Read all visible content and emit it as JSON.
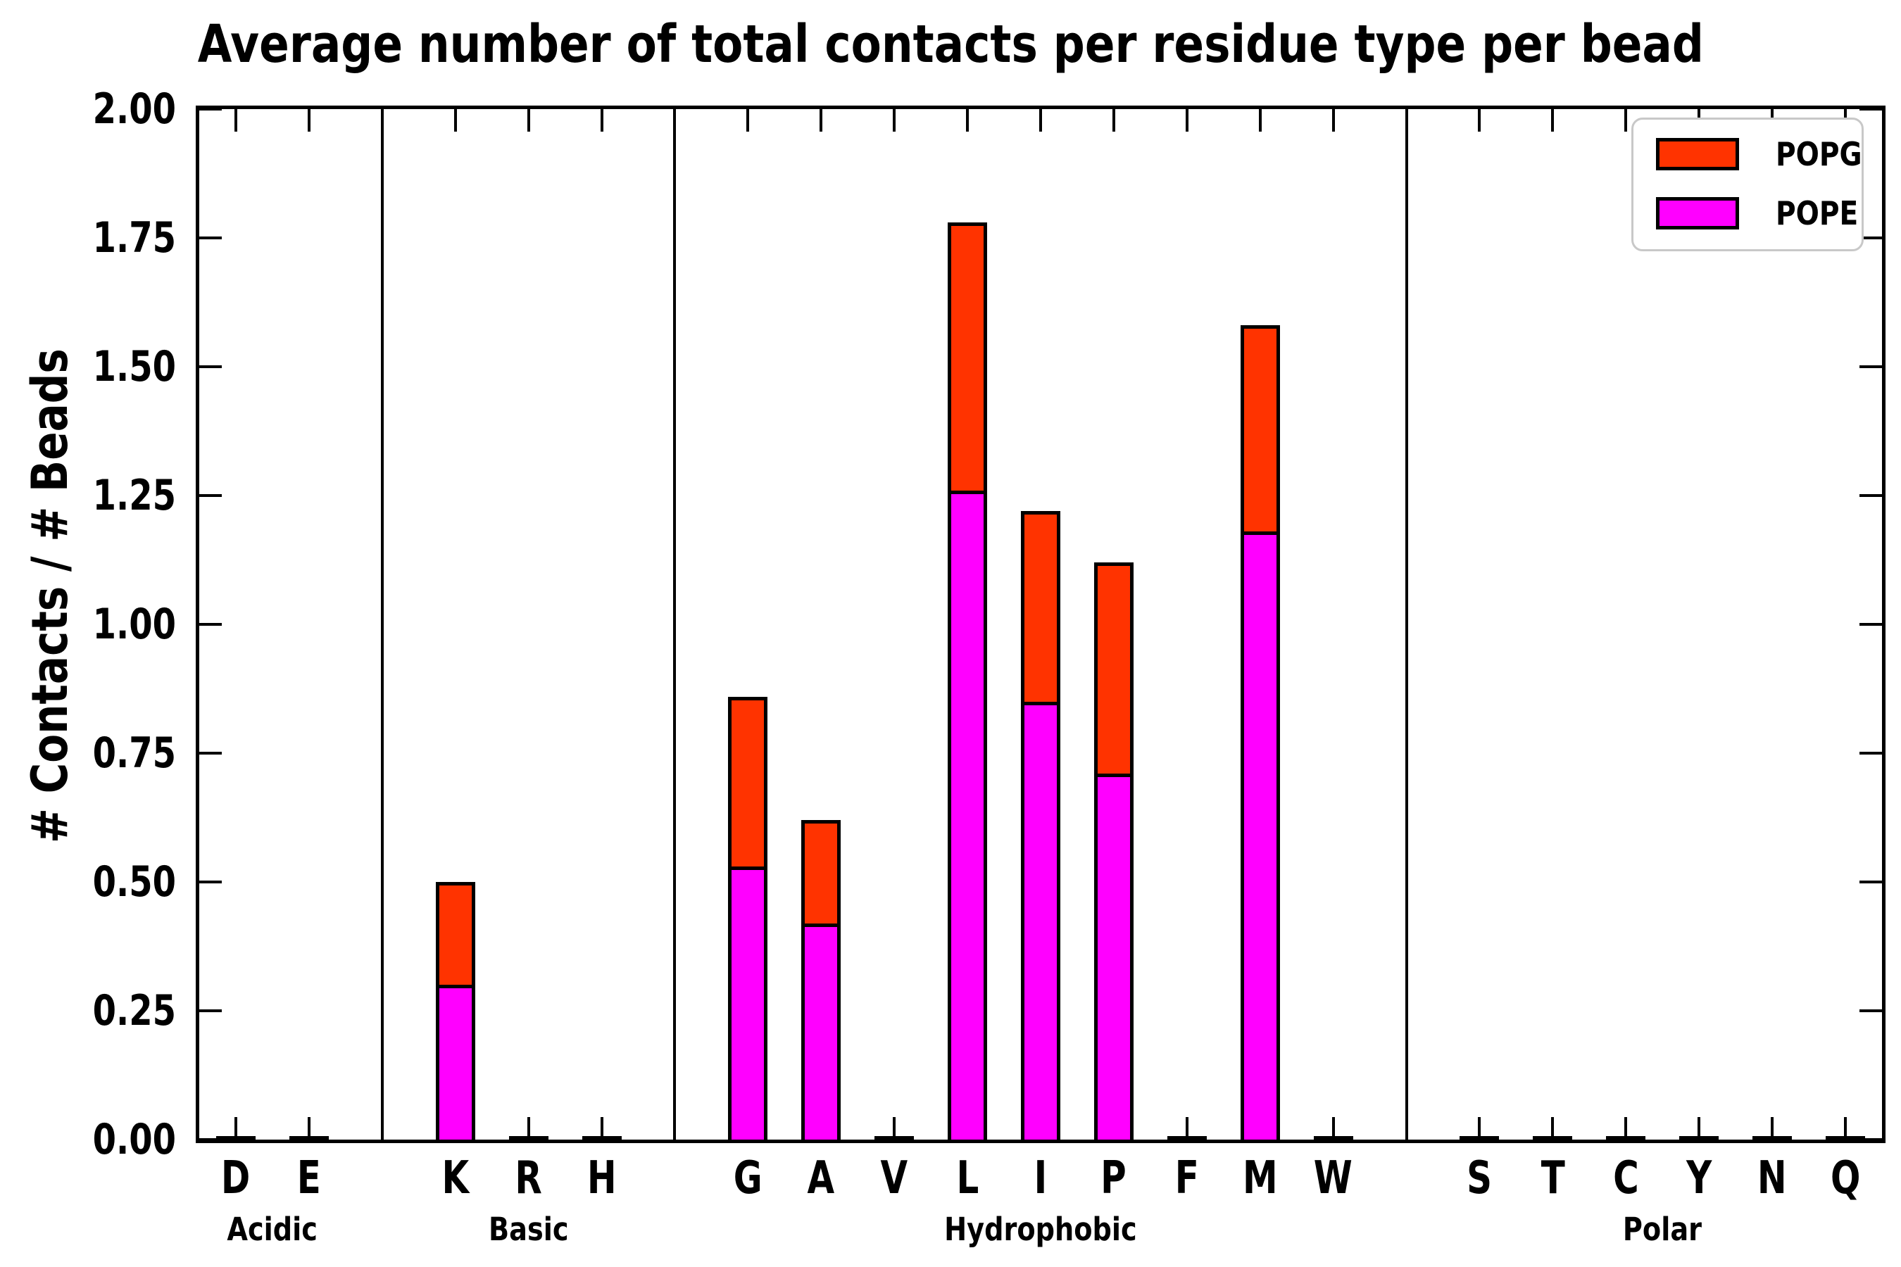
{
  "chart_data": {
    "type": "bar",
    "stacked": true,
    "title": "Average number of total contacts per residue type per bead",
    "ylabel": "# Contacts / # Beads",
    "xlabel": "",
    "ylim": [
      0,
      2
    ],
    "ytick_step": 0.25,
    "ytick_labels": [
      "0.00",
      "0.25",
      "0.50",
      "0.75",
      "1.00",
      "1.25",
      "1.50",
      "1.75",
      "2.00"
    ],
    "grid": false,
    "categories": [
      "D",
      "E",
      "K",
      "R",
      "H",
      "G",
      "A",
      "V",
      "L",
      "I",
      "P",
      "F",
      "M",
      "W",
      "S",
      "T",
      "C",
      "Y",
      "N",
      "Q"
    ],
    "groups": [
      {
        "label": "Acidic",
        "categories": [
          "D",
          "E"
        ]
      },
      {
        "label": "Basic",
        "categories": [
          "K",
          "R",
          "H"
        ]
      },
      {
        "label": "Hydrophobic",
        "categories": [
          "G",
          "A",
          "V",
          "L",
          "I",
          "P",
          "F",
          "M",
          "W"
        ]
      },
      {
        "label": "Polar",
        "categories": [
          "S",
          "T",
          "C",
          "Y",
          "N",
          "Q"
        ]
      }
    ],
    "series": [
      {
        "name": "POPE",
        "color": "#ff00ff",
        "values": [
          0,
          0,
          0.3,
          0,
          0,
          0.53,
          0.42,
          0,
          1.26,
          0.85,
          0.71,
          0,
          1.18,
          0,
          0,
          0,
          0,
          0,
          0,
          0
        ]
      },
      {
        "name": "POPG",
        "color": "#ff3300",
        "values": [
          0,
          0,
          0.2,
          0,
          0,
          0.33,
          0.2,
          0,
          0.52,
          0.37,
          0.41,
          0,
          0.4,
          0,
          0,
          0,
          0,
          0,
          0,
          0
        ]
      }
    ],
    "stacked_totals": {
      "K": 0.5,
      "G": 0.86,
      "A": 0.62,
      "L": 1.78,
      "I": 1.22,
      "P": 1.12,
      "M": 1.58
    },
    "legend": {
      "position": "upper right",
      "entries": [
        {
          "label": "POPG",
          "color": "#ff3300"
        },
        {
          "label": "POPE",
          "color": "#ff00ff"
        }
      ]
    }
  }
}
